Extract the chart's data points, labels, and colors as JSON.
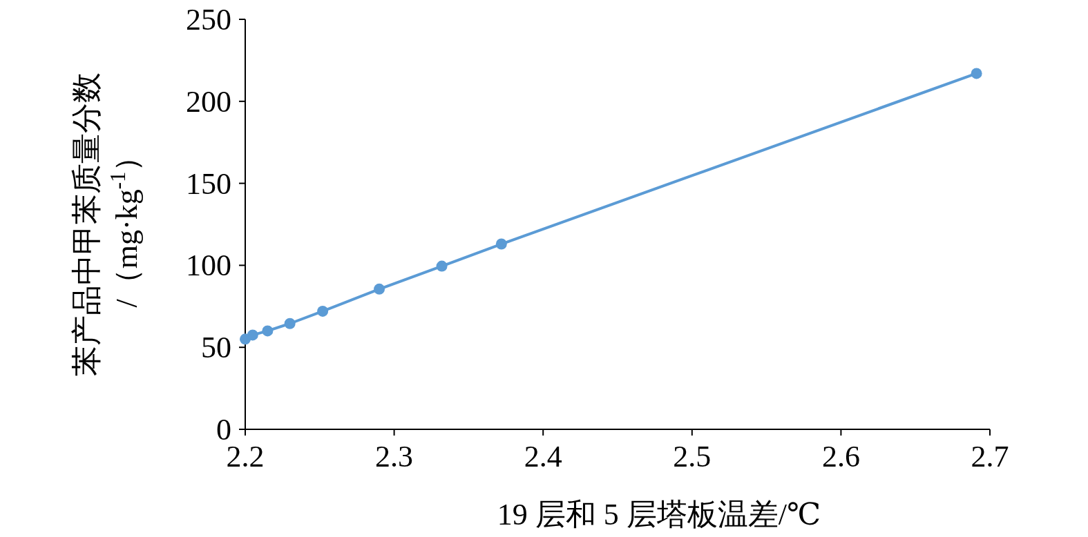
{
  "chart_data": {
    "type": "line",
    "xlabel": "19 层和 5 层塔板温差/℃",
    "ylabel": "苯产品中甲苯质量分数/（mg·kg$^{-1}$）",
    "x": [
      2.2,
      2.205,
      2.215,
      2.23,
      2.252,
      2.29,
      2.332,
      2.372,
      2.691
    ],
    "series": [
      {
        "color": "#5b9bd5",
        "values": [
          55,
          57.5,
          60,
          64.5,
          72,
          85.5,
          99.5,
          113,
          217
        ]
      }
    ],
    "xlim": [
      2.2,
      2.7
    ],
    "xticks": [
      2.2,
      2.3,
      2.4,
      2.5,
      2.6,
      2.7
    ],
    "ylim": [
      0,
      250
    ],
    "yticks": [
      0,
      50,
      100,
      150,
      200,
      250
    ],
    "marker": "circle",
    "line_style": "solid",
    "grid": false
  }
}
